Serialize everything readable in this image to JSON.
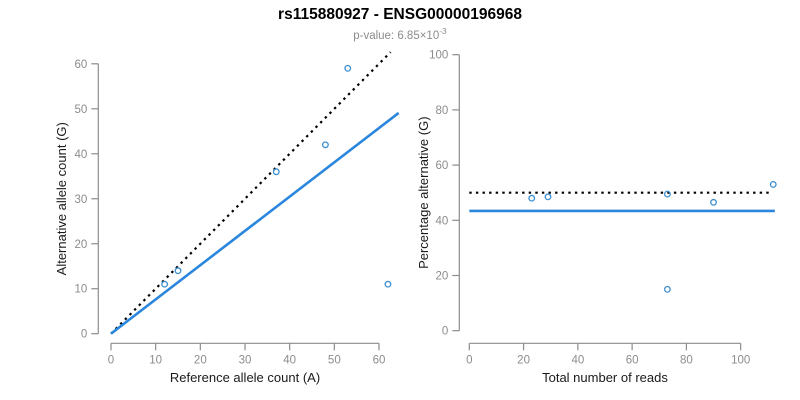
{
  "header": {
    "title": "rs115880927 - ENSG00000196968",
    "subtitle_prefix": "p-value: 6.85×10",
    "subtitle_exponent": "-3"
  },
  "colors": {
    "fit_line": "#2b87dd",
    "point": "#3d8fd0",
    "dotted_line": "#000000",
    "axis": "#8c8c8c",
    "tick_label": "#8c8c8c",
    "axis_title": "#1a1a1a",
    "title": "#000000",
    "subtitle": "#8c8c8c"
  },
  "chart_data": [
    {
      "type": "scatter",
      "name": "allele-counts-panel",
      "xlabel": "Reference allele count (A)",
      "ylabel": "Alternative allele count (G)",
      "xticks": [
        0,
        10,
        20,
        30,
        40,
        50,
        60
      ],
      "yticks": [
        0,
        10,
        20,
        30,
        40,
        50,
        60
      ],
      "xlim": [
        0,
        64
      ],
      "ylim": [
        0,
        62
      ],
      "grid": false,
      "legend": null,
      "points": [
        [
          12,
          11
        ],
        [
          15,
          14
        ],
        [
          37,
          36
        ],
        [
          48,
          42
        ],
        [
          53,
          59
        ],
        [
          62,
          11
        ]
      ],
      "lines": [
        {
          "name": "identity-line",
          "style": "dotted",
          "color": "#000000",
          "slope": 1,
          "intercept": 0,
          "x_range": [
            0,
            62.6
          ]
        },
        {
          "name": "fit-line",
          "style": "solid",
          "color": "#2b87dd",
          "slope": 0.762,
          "intercept": 0,
          "x_range": [
            0,
            64.4
          ]
        }
      ]
    },
    {
      "type": "scatter",
      "name": "percentage-panel",
      "xlabel": "Total number of reads",
      "ylabel": "Percentage alternative (G)",
      "xticks": [
        0,
        20,
        40,
        60,
        80,
        100
      ],
      "yticks": [
        0,
        20,
        40,
        60,
        80,
        100
      ],
      "xlim": [
        0,
        116
      ],
      "ylim": [
        0,
        104
      ],
      "grid": false,
      "legend": null,
      "points": [
        [
          23,
          48
        ],
        [
          29,
          48.5
        ],
        [
          73,
          49.5
        ],
        [
          73,
          15
        ],
        [
          90,
          46.5
        ],
        [
          112,
          53
        ]
      ],
      "lines": [
        {
          "name": "expected-50pct-line",
          "style": "dotted",
          "color": "#000000",
          "slope": 0,
          "intercept": 50,
          "x_range": [
            0,
            110.5
          ]
        },
        {
          "name": "mean-percentage-line",
          "style": "solid",
          "color": "#2b87dd",
          "slope": 0,
          "intercept": 43.4,
          "x_range": [
            0,
            112.6
          ]
        }
      ]
    }
  ]
}
